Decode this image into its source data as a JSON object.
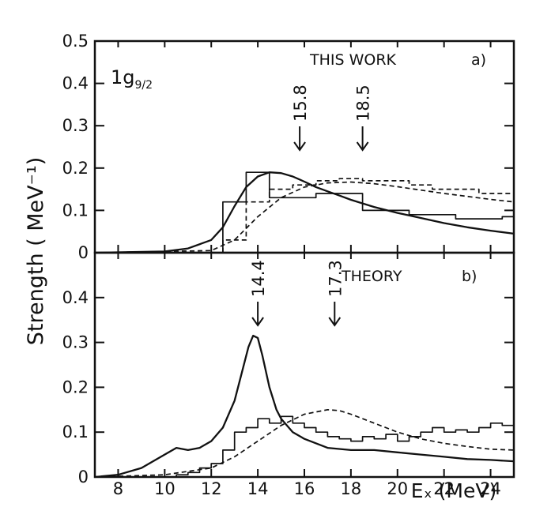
{
  "figure": {
    "ylabel": "Strength ( MeV⁻¹)",
    "xlabel": "Eₓ (MeV)",
    "xlim": [
      7,
      25
    ],
    "xticks": [
      8,
      10,
      12,
      14,
      16,
      18,
      20,
      22,
      24
    ],
    "colors": {
      "ink": "#111111"
    }
  },
  "chart_data": [
    {
      "type": "line",
      "panel": "a",
      "panel_label": "a)",
      "title": "THIS WORK",
      "state_label": "1g",
      "state_sub": "9/2",
      "ylim": [
        0,
        0.5
      ],
      "yticks": [
        0,
        0.1,
        0.2,
        0.3,
        0.4,
        0.5
      ],
      "ytick_labels": [
        "0",
        "0.1",
        "0.2",
        "0.3",
        "0.4",
        "0.5"
      ],
      "annotations": [
        {
          "text": "15.8",
          "x": 15.8
        },
        {
          "text": "18.5",
          "x": 18.5
        }
      ],
      "series": [
        {
          "style": "solid-curve",
          "x": [
            7,
            10,
            11,
            12,
            12.5,
            13,
            13.5,
            14,
            14.5,
            15,
            15.5,
            16,
            16.5,
            17,
            17.5,
            18,
            19,
            20,
            21,
            22,
            23,
            24,
            25
          ],
          "y": [
            0,
            0.003,
            0.01,
            0.03,
            0.06,
            0.11,
            0.155,
            0.18,
            0.19,
            0.188,
            0.18,
            0.168,
            0.155,
            0.145,
            0.135,
            0.125,
            0.108,
            0.094,
            0.082,
            0.07,
            0.06,
            0.052,
            0.045
          ]
        },
        {
          "style": "solid-histogram",
          "edges": [
            12.5,
            13.5,
            14.5,
            16.5,
            18.5,
            20.5,
            22.5,
            24.5,
            25
          ],
          "values": [
            0.12,
            0.19,
            0.13,
            0.14,
            0.1,
            0.09,
            0.08,
            0.085
          ]
        },
        {
          "style": "dashed-curve",
          "x": [
            7,
            12,
            13,
            14,
            15,
            16,
            17,
            18,
            19,
            20,
            21,
            22,
            23,
            24,
            25
          ],
          "y": [
            0,
            0.005,
            0.03,
            0.085,
            0.13,
            0.155,
            0.165,
            0.167,
            0.163,
            0.156,
            0.148,
            0.14,
            0.133,
            0.126,
            0.12
          ]
        },
        {
          "style": "dashed-histogram",
          "edges": [
            12.5,
            13.5,
            14.5,
            15.5,
            16.5,
            17.5,
            18.5,
            19.5,
            20.5,
            21.5,
            22.5,
            23.5,
            25
          ],
          "values": [
            0.03,
            0.12,
            0.15,
            0.16,
            0.17,
            0.175,
            0.17,
            0.17,
            0.16,
            0.15,
            0.15,
            0.14
          ]
        }
      ]
    },
    {
      "type": "line",
      "panel": "b",
      "panel_label": "b)",
      "title": "THEORY",
      "ylim": [
        0,
        0.5
      ],
      "yticks": [
        0,
        0.1,
        0.2,
        0.3,
        0.4
      ],
      "ytick_labels": [
        "0",
        "0.1",
        "0.2",
        "0.3",
        "0.4"
      ],
      "annotations": [
        {
          "text": "14.4",
          "x": 14.0
        },
        {
          "text": "17.3",
          "x": 17.3
        }
      ],
      "series": [
        {
          "style": "solid-curve",
          "x": [
            7,
            8,
            9,
            10,
            10.5,
            11,
            11.5,
            12,
            12.5,
            13,
            13.3,
            13.6,
            13.8,
            14,
            14.2,
            14.5,
            14.8,
            15,
            15.5,
            16,
            17,
            18,
            19,
            20,
            21,
            22,
            23,
            24,
            25
          ],
          "y": [
            0,
            0.005,
            0.02,
            0.05,
            0.065,
            0.06,
            0.065,
            0.08,
            0.11,
            0.17,
            0.23,
            0.29,
            0.315,
            0.31,
            0.27,
            0.2,
            0.15,
            0.13,
            0.1,
            0.085,
            0.065,
            0.06,
            0.06,
            0.055,
            0.05,
            0.045,
            0.04,
            0.038,
            0.035
          ]
        },
        {
          "style": "dashed-curve",
          "x": [
            7,
            10,
            12,
            13,
            14,
            15,
            16,
            17,
            17.5,
            18,
            19,
            20,
            21,
            22,
            23,
            24,
            25
          ],
          "y": [
            0,
            0.005,
            0.02,
            0.045,
            0.08,
            0.115,
            0.14,
            0.15,
            0.148,
            0.14,
            0.12,
            0.1,
            0.085,
            0.075,
            0.068,
            0.062,
            0.06
          ]
        },
        {
          "style": "solid-histogram",
          "edges": [
            10.5,
            11,
            11.5,
            12,
            12.5,
            13,
            13.5,
            14,
            14.5,
            15,
            15.5,
            16,
            16.5,
            17,
            17.5,
            18,
            18.5,
            19,
            19.5,
            20,
            20.5,
            21,
            21.5,
            22,
            22.5,
            23,
            23.5,
            24,
            24.5,
            25
          ],
          "values": [
            0.005,
            0.01,
            0.02,
            0.03,
            0.06,
            0.1,
            0.11,
            0.13,
            0.12,
            0.135,
            0.12,
            0.11,
            0.1,
            0.09,
            0.085,
            0.08,
            0.09,
            0.085,
            0.095,
            0.08,
            0.09,
            0.1,
            0.11,
            0.1,
            0.105,
            0.1,
            0.11,
            0.12,
            0.115
          ]
        }
      ]
    }
  ]
}
